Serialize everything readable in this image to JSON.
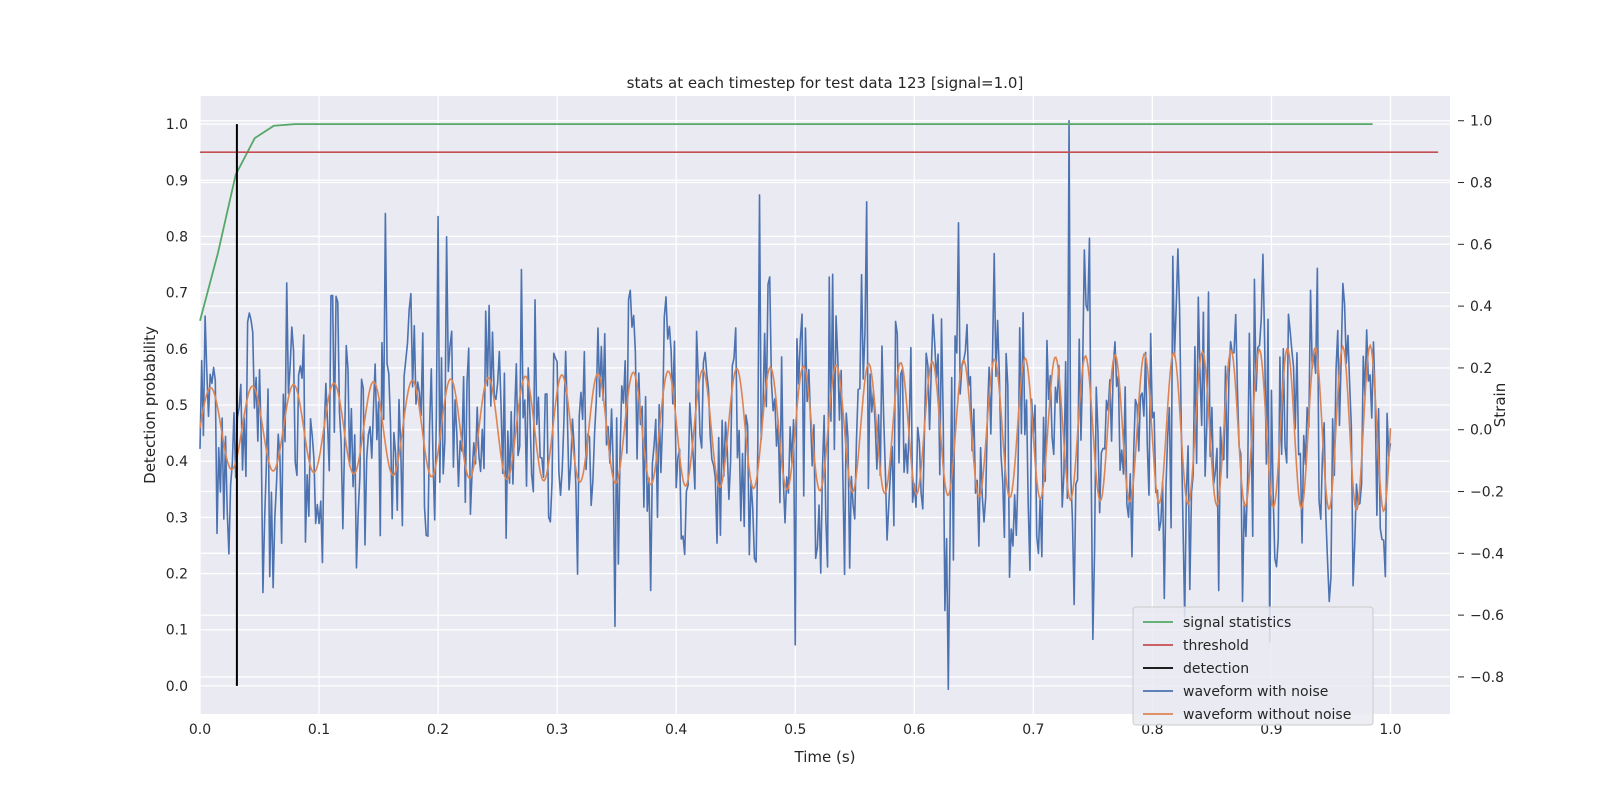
{
  "chart_data": {
    "type": "line",
    "title": "stats at each timestep for test data 123 [signal=1.0]",
    "xlabel": "Time (s)",
    "ylabel_left": "Detection probability",
    "ylabel_right": "Strain",
    "xlim": [
      0.0,
      1.05
    ],
    "ylim_left": [
      -0.05,
      1.05
    ],
    "ylim_right": [
      -0.92,
      1.08
    ],
    "x_ticks": [
      "0.0",
      "0.1",
      "0.2",
      "0.3",
      "0.4",
      "0.5",
      "0.6",
      "0.7",
      "0.8",
      "0.9",
      "1.0"
    ],
    "y_left_ticks": [
      "0.0",
      "0.1",
      "0.2",
      "0.3",
      "0.4",
      "0.5",
      "0.6",
      "0.7",
      "0.8",
      "0.9",
      "1.0"
    ],
    "y_right_ticks": [
      "−0.8",
      "−0.6",
      "−0.4",
      "−0.2",
      "0.0",
      "0.2",
      "0.4",
      "0.6",
      "0.8",
      "1.0"
    ],
    "grid": true,
    "legend_position": "lower-right",
    "series": [
      {
        "name": "signal statistics",
        "axis": "left",
        "color": "#55a868",
        "x": [
          0.0,
          0.015,
          0.03,
          0.046,
          0.062,
          0.08,
          0.1,
          0.2,
          0.4,
          0.6,
          0.8,
          0.985
        ],
        "y": [
          0.65,
          0.77,
          0.91,
          0.975,
          0.997,
          1.0,
          1.0,
          1.0,
          1.0,
          1.0,
          1.0,
          1.0
        ]
      },
      {
        "name": "threshold",
        "axis": "left",
        "color": "#c44e52",
        "x": [
          0.0,
          1.04
        ],
        "y": [
          0.95,
          0.95
        ]
      },
      {
        "name": "detection",
        "axis": "left",
        "color": "#000000",
        "x": [
          0.031,
          0.031
        ],
        "y": [
          0.0,
          1.0
        ]
      },
      {
        "name": "waveform with noise",
        "axis": "right",
        "color": "#4c72b0",
        "description": "noisy strain around a chirping sinusoid, approx. std 0.2, range -0.84 to 1.0, spike to 1.0 near t=0.73",
        "peaks": [
          [
            0.73,
            1.0
          ],
          [
            0.628,
            -0.84
          ],
          [
            0.47,
            0.76
          ],
          [
            0.155,
            0.7
          ],
          [
            0.2,
            0.69
          ]
        ]
      },
      {
        "name": "waveform without noise",
        "axis": "right",
        "color": "#dd8452",
        "description": "chirp sinusoid; amplitude ~0.13 at t=0 growing to ~0.27 at t=1.0; frequency ~28 Hz rising to ~44 Hz",
        "amplitude_start": 0.13,
        "amplitude_end": 0.27,
        "freq_start_hz": 28,
        "freq_end_hz": 44
      }
    ]
  }
}
